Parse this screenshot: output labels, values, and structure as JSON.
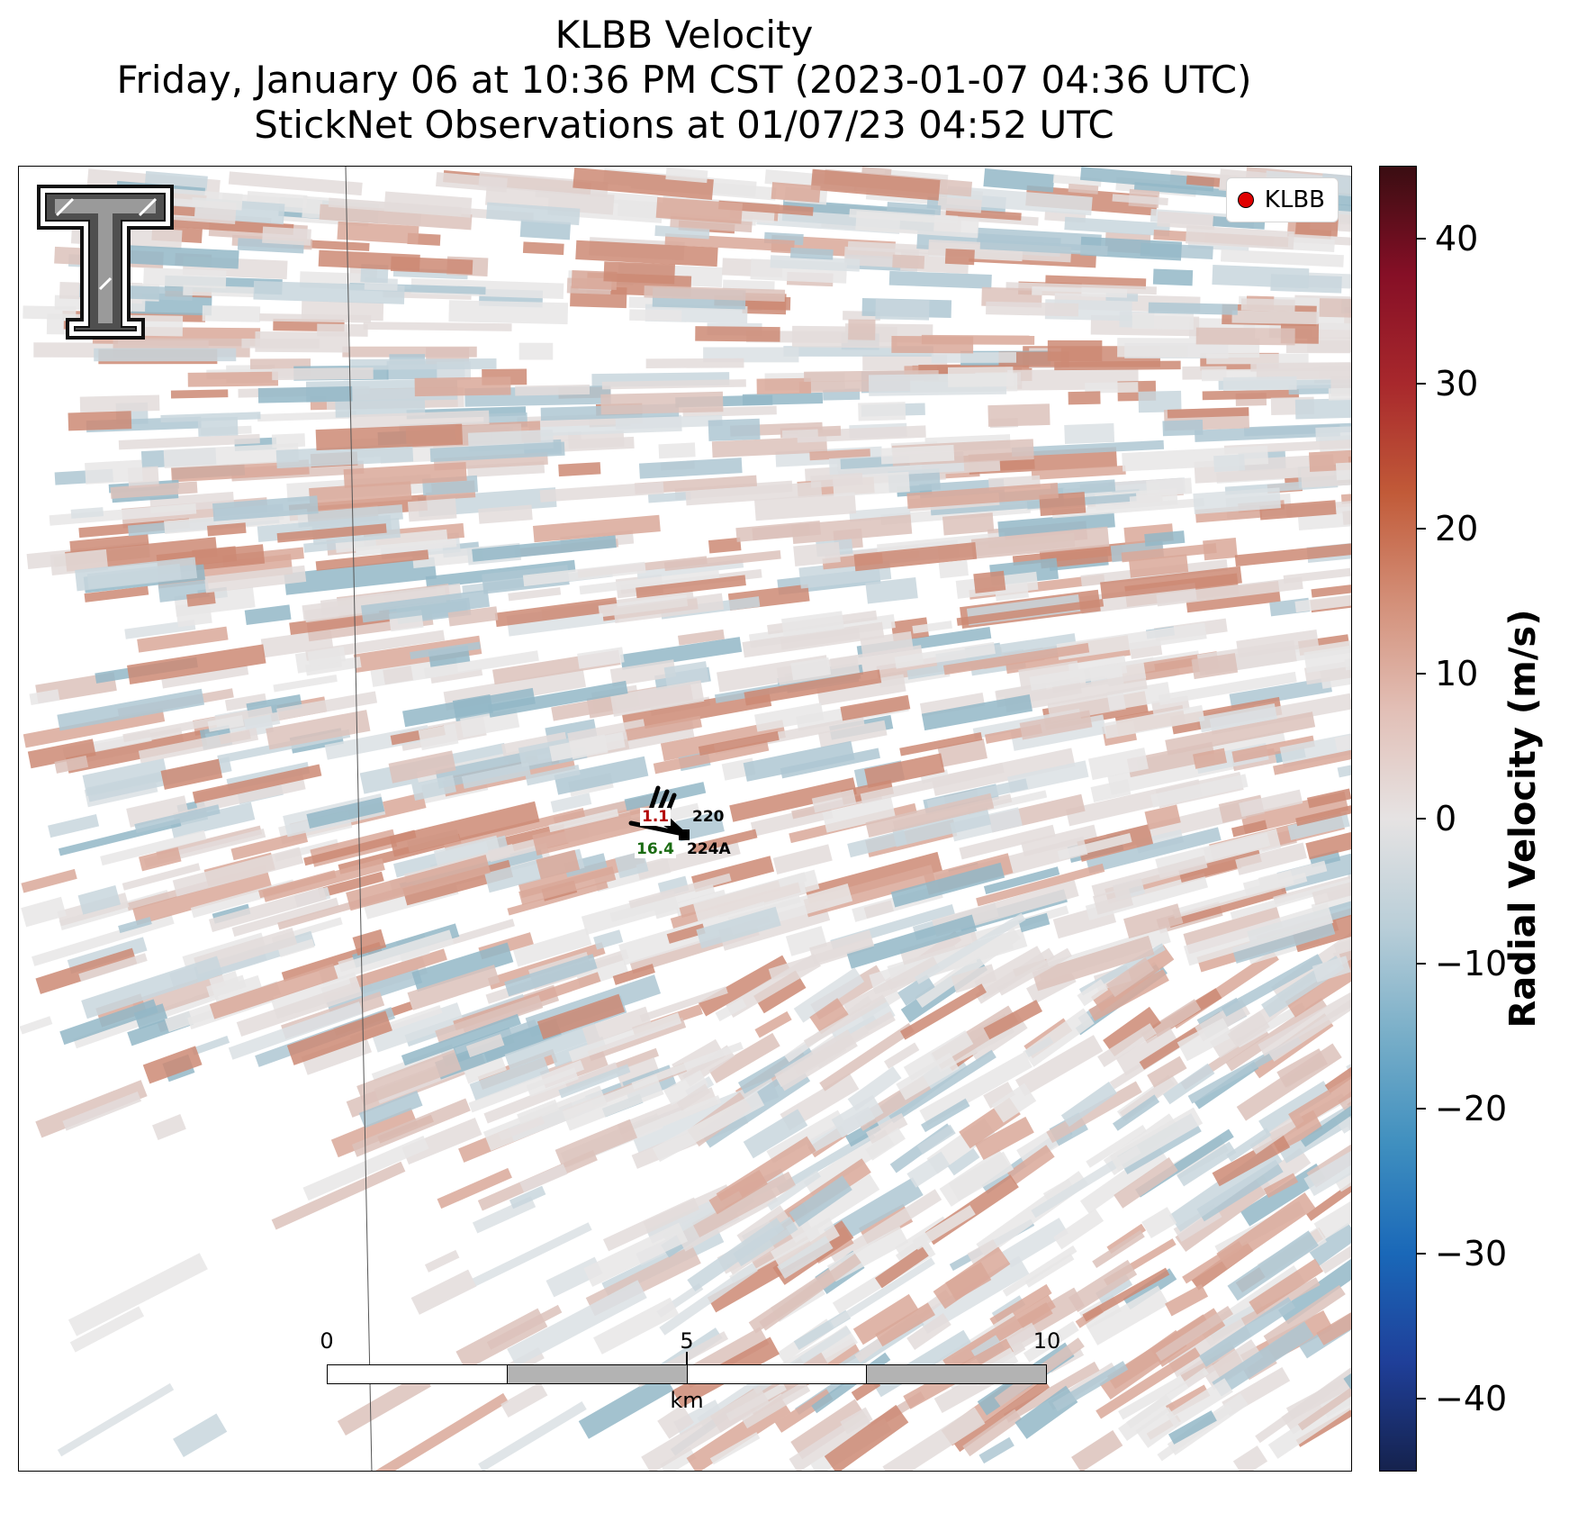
{
  "title": {
    "line1": "KLBB Velocity",
    "line2": "Friday, January 06 at 10:36 PM CST (2023-01-07 04:36 UTC)",
    "line3": "StickNet Observations at 01/07/23 04:52 UTC"
  },
  "legend": {
    "label": "KLBB",
    "marker_color": "#e00000"
  },
  "stations": [
    {
      "id": "220",
      "value": "1.1",
      "value_color": "#b30000"
    },
    {
      "id": "224A",
      "value": "16.4",
      "value_color": "#1a6b12"
    }
  ],
  "scalebar": {
    "ticks": [
      "0",
      "5",
      "10"
    ],
    "unit": "km"
  },
  "colorbar": {
    "label": "Radial Velocity (m/s)",
    "min": -45,
    "max": 45,
    "ticks": [
      "40",
      "30",
      "20",
      "10",
      "0",
      "−10",
      "−20",
      "−30",
      "−40"
    ],
    "tick_values": [
      40,
      30,
      20,
      10,
      0,
      -10,
      -20,
      -30,
      -40
    ],
    "colormap": [
      "#15224d",
      "#1f3f99",
      "#1a68b8",
      "#3f8fbf",
      "#78aec8",
      "#b9ced8",
      "#e6e3e3",
      "#e2bfb6",
      "#d38f78",
      "#c15a38",
      "#a8282c",
      "#860f26",
      "#3a0d12"
    ]
  },
  "logo": {
    "name": "texas-tech-double-t-logo"
  }
}
